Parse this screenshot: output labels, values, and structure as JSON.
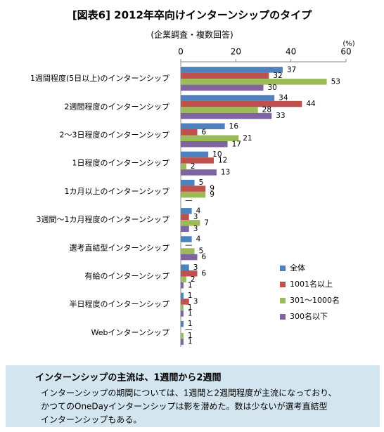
{
  "chart_data": {
    "type": "hbar",
    "title": "[図表6] 2012年卒向けインターンシップのタイプ",
    "subtitle": "(企業調査・複数回答)",
    "unit_label": "(%)",
    "categories": [
      "1週間程度(5日以上)のインターンシップ",
      "2週間程度のインターンシップ",
      "2〜3日程度のインターンシップ",
      "1日程度のインターンシップ",
      "1カ月以上のインターンシップ",
      "3週間〜1カ月程度のインターンシップ",
      "選考直結型インターンシップ",
      "有給のインターンシップ",
      "半日程度のインターンシップ",
      "Webインターンシップ"
    ],
    "series": [
      {
        "name": "全体",
        "color": "#4f81bd",
        "values": [
          37,
          34,
          16,
          10,
          5,
          4,
          4,
          3,
          1,
          1
        ]
      },
      {
        "name": "1001名以上",
        "color": "#c0504d",
        "values": [
          32,
          44,
          6,
          12,
          9,
          3,
          null,
          6,
          3,
          null
        ],
        "value_labels": [
          "32",
          "44",
          "6",
          "12",
          "9",
          "3",
          "—",
          "6",
          "3",
          "—"
        ]
      },
      {
        "name": "301〜1000名",
        "color": "#9bbb59",
        "values": [
          53,
          28,
          21,
          2,
          9,
          7,
          5,
          2,
          1,
          1
        ]
      },
      {
        "name": "300名以下",
        "color": "#8064a2",
        "values": [
          30,
          33,
          17,
          13,
          null,
          3,
          6,
          1,
          1,
          1
        ],
        "value_labels": [
          "30",
          "33",
          "17",
          "13",
          "—",
          "3",
          "6",
          "1",
          "1",
          "1"
        ]
      }
    ],
    "xlim": [
      0,
      60
    ],
    "xticks": [
      0,
      20,
      40,
      60
    ],
    "legend": "right"
  },
  "note": {
    "heading": "インターンシップの主流は、1週間から2週間",
    "lines": [
      "インターンシップの期間については、1週間と2週間程度が主流になっており、",
      "かつてのOneDayインターンシップは影を潜めた。数は少ないが選考直結型",
      "インターンシップもある。"
    ]
  }
}
